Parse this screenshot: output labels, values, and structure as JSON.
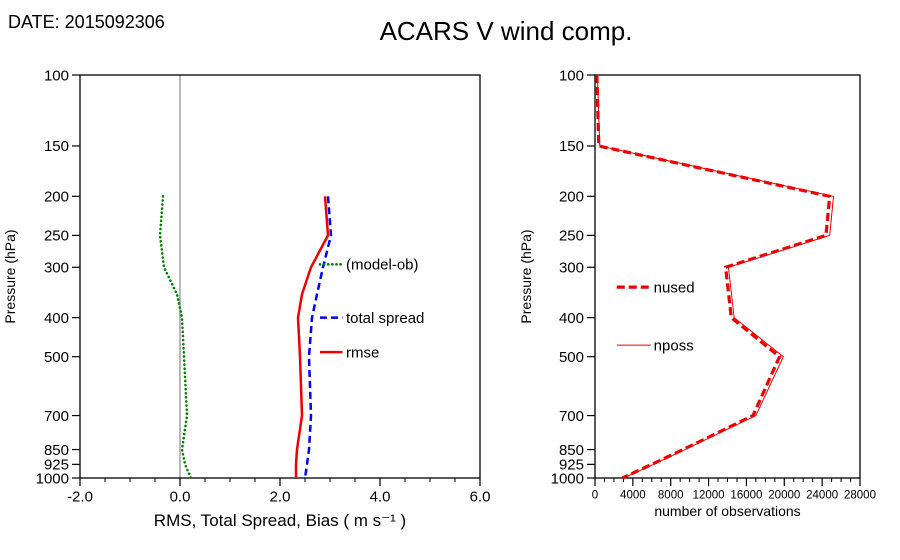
{
  "header": {
    "date": "DATE: 2015092306",
    "title": "ACARS V wind comp."
  },
  "chart_data": [
    {
      "type": "line",
      "panel": "left",
      "xlabel": "RMS, Total Spread, Bias ( m s⁻¹ )",
      "ylabel": "Pressure (hPa)",
      "x_axis": {
        "min": -2,
        "max": 6,
        "ticks": [
          -2,
          0,
          2,
          4,
          6
        ],
        "tick_labels": [
          "-2.0",
          "0.0",
          "2.0",
          "4.0",
          "6.0"
        ],
        "minor_step": 0.5
      },
      "y_axis": {
        "scale": "log",
        "min": 100,
        "max": 1000,
        "ticks": [
          100,
          150,
          200,
          250,
          300,
          400,
          500,
          700,
          850,
          925,
          1000
        ],
        "tick_labels": [
          "100",
          "150",
          "200",
          "250",
          "300",
          "400",
          "500",
          "700",
          "850",
          "925",
          "1000"
        ]
      },
      "zero_line": true,
      "series": [
        {
          "name": "(model-ob)",
          "color": "#008000",
          "style": "dotted",
          "width": 2.6,
          "pressure": [
            200,
            250,
            300,
            350,
            400,
            500,
            700,
            850,
            925,
            1000
          ],
          "values": [
            -0.34,
            -0.4,
            -0.32,
            -0.06,
            0.04,
            0.08,
            0.14,
            0.04,
            0.1,
            0.22
          ]
        },
        {
          "name": "total spread",
          "color": "#0000ff",
          "style": "dashed",
          "width": 2.5,
          "pressure": [
            200,
            250,
            300,
            350,
            400,
            500,
            700,
            850,
            925,
            1000
          ],
          "values": [
            2.96,
            3.02,
            2.86,
            2.74,
            2.64,
            2.58,
            2.62,
            2.58,
            2.54,
            2.5
          ]
        },
        {
          "name": "rmse",
          "color": "#ee0000",
          "style": "solid",
          "width": 2.5,
          "pressure": [
            200,
            250,
            300,
            350,
            400,
            500,
            700,
            850,
            925,
            1000
          ],
          "values": [
            2.9,
            2.96,
            2.62,
            2.44,
            2.36,
            2.4,
            2.44,
            2.34,
            2.32,
            2.32
          ]
        }
      ],
      "legend": [
        {
          "label": "(model-ob)",
          "series": "(model-ob)",
          "sample_x": [
            2.8,
            3.25
          ],
          "text_x": 3.32,
          "pressure": 295
        },
        {
          "label": "total spread",
          "series": "total spread",
          "sample_x": [
            2.8,
            3.25
          ],
          "text_x": 3.32,
          "pressure": 400
        },
        {
          "label": "rmse",
          "series": "rmse",
          "sample_x": [
            2.8,
            3.25
          ],
          "text_x": 3.32,
          "pressure": 487
        }
      ]
    },
    {
      "type": "line",
      "panel": "right",
      "xlabel": "number of observations",
      "ylabel": "Pressure (hPa)",
      "x_axis": {
        "min": 0,
        "max": 28000,
        "ticks": [
          0,
          4000,
          8000,
          12000,
          16000,
          20000,
          24000,
          28000
        ],
        "tick_labels": [
          "0",
          "4000",
          "8000",
          "12000",
          "16000",
          "20000",
          "24000",
          "28000"
        ],
        "minor_step": 1000
      },
      "y_axis": {
        "scale": "log",
        "min": 100,
        "max": 1000,
        "ticks": [
          100,
          150,
          200,
          250,
          300,
          400,
          500,
          700,
          850,
          925,
          1000
        ],
        "tick_labels": [
          "100",
          "150",
          "200",
          "250",
          "300",
          "400",
          "500",
          "700",
          "850",
          "925",
          "1000"
        ]
      },
      "zero_line": false,
      "series": [
        {
          "name": "nposs",
          "color": "#ee0000",
          "style": "solid",
          "width": 1,
          "pressure": [
            100,
            150,
            200,
            250,
            300,
            400,
            500,
            700,
            850,
            925,
            1000
          ],
          "values": [
            250,
            500,
            25200,
            24800,
            14100,
            14700,
            19900,
            17000,
            9500,
            6200,
            3000
          ]
        },
        {
          "name": "nused",
          "color": "#ee0000",
          "style": "dashed",
          "width": 3.2,
          "pressure": [
            100,
            150,
            200,
            250,
            300,
            400,
            500,
            700,
            850,
            925,
            1000
          ],
          "values": [
            200,
            400,
            24800,
            24400,
            13800,
            14400,
            19500,
            16700,
            9300,
            6000,
            2900
          ]
        }
      ],
      "legend": [
        {
          "label": "nused",
          "series": "nused",
          "sample_x": [
            2300,
            5900
          ],
          "text_x": 6200,
          "pressure": 336
        },
        {
          "label": "nposs",
          "series": "nposs",
          "sample_x": [
            2300,
            5900
          ],
          "text_x": 6200,
          "pressure": 468
        }
      ]
    }
  ]
}
